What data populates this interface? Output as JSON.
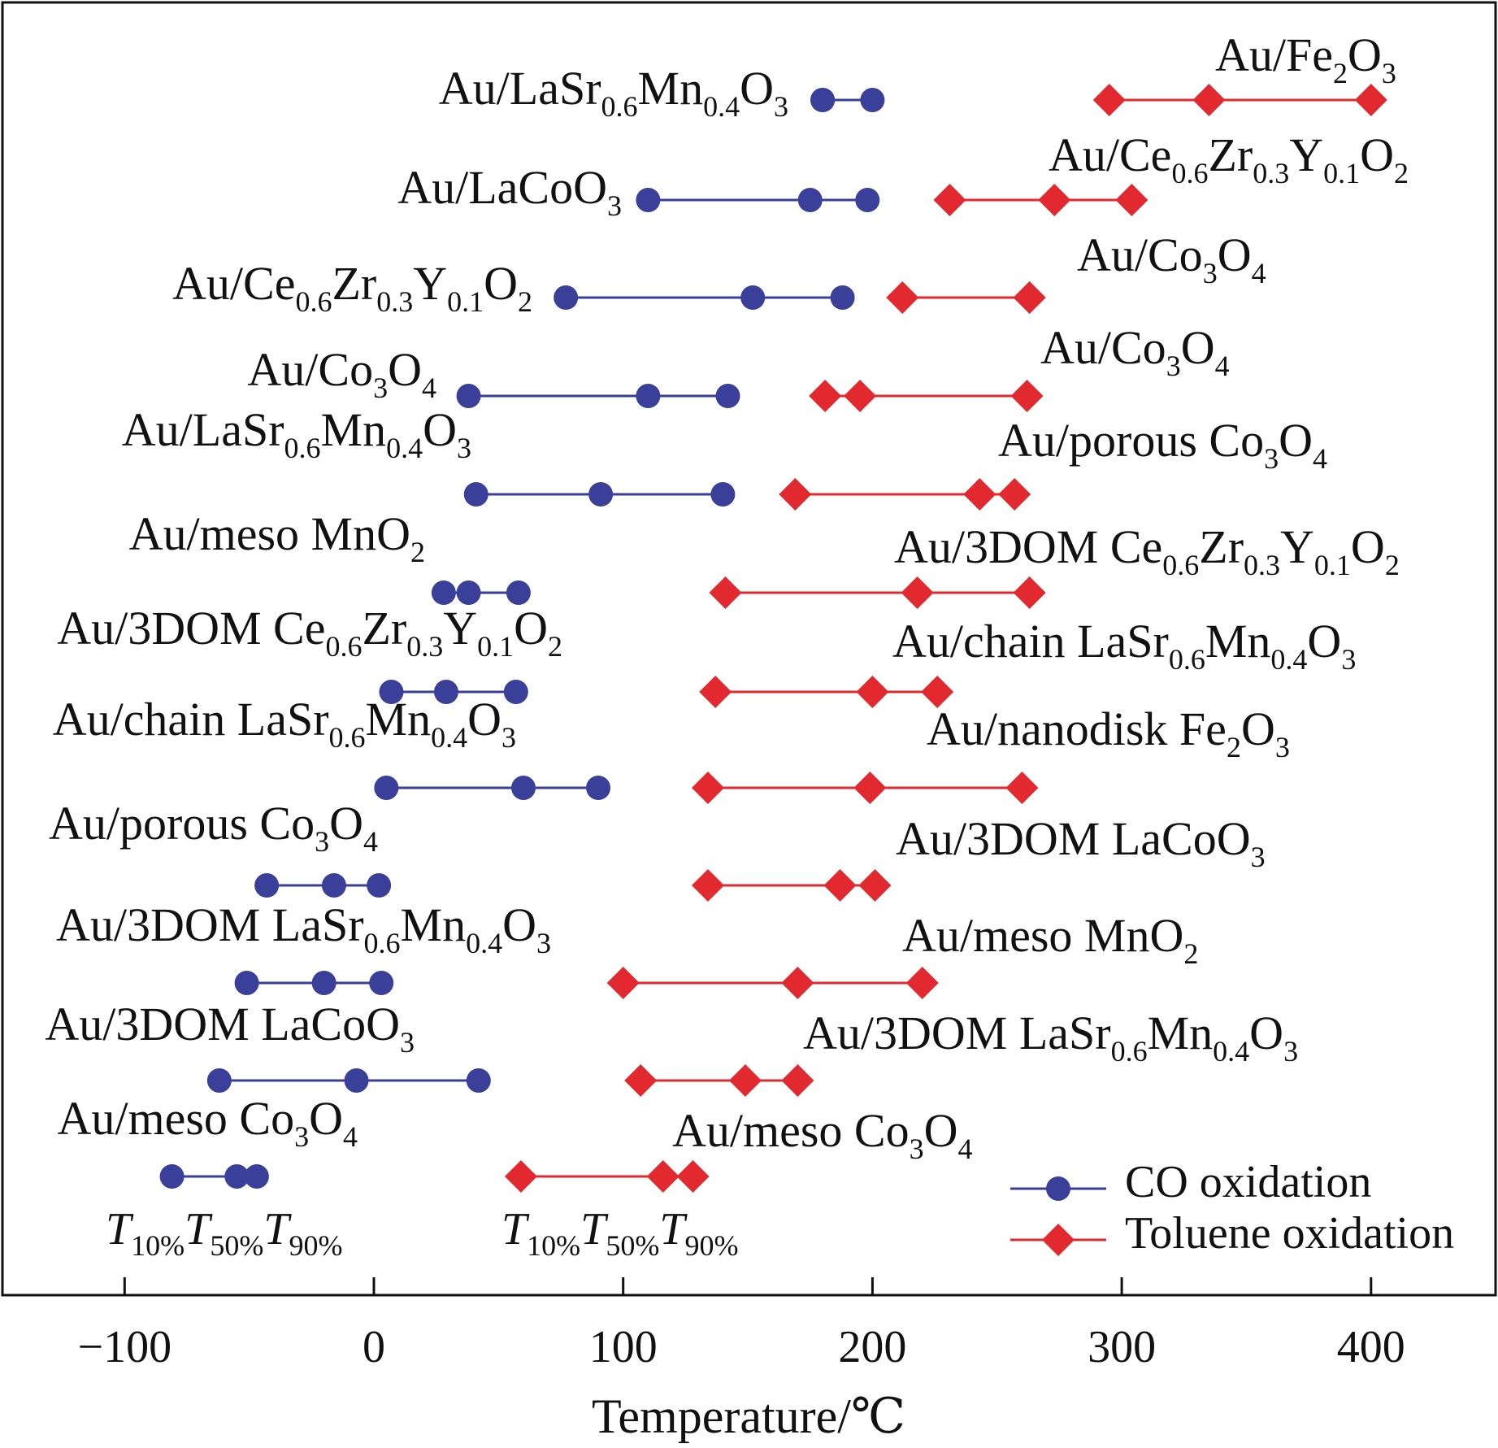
{
  "chart_data": {
    "type": "scatter",
    "xlabel": "Temperature/℃",
    "xlim": [
      -150,
      450
    ],
    "x_ticks": [
      -100,
      0,
      100,
      200,
      300,
      400
    ],
    "x_tick_labels": [
      "−100",
      "0",
      "100",
      "200",
      "300",
      "400"
    ],
    "grid": false,
    "legend_position": "bottom-right",
    "colors": {
      "co": "#3a3f9a",
      "toluene": "#e2292f"
    },
    "series": [
      {
        "name": "CO oxidation",
        "color": "#3a3f9a",
        "marker": "circle"
      },
      {
        "name": "Toluene oxidation",
        "color": "#e2292f",
        "marker": "diamond"
      }
    ],
    "bottom_labels": {
      "co": [
        {
          "base": "T",
          "sub": "10%"
        },
        {
          "base": "T",
          "sub": "50%"
        },
        {
          "base": "T",
          "sub": "90%"
        }
      ],
      "toluene": [
        {
          "base": "T",
          "sub": "10%"
        },
        {
          "base": "T",
          "sub": "50%"
        },
        {
          "base": "T",
          "sub": "90%"
        }
      ]
    },
    "co_rows": [
      {
        "catalyst": [
          [
            "Au/LaSr",
            ""
          ],
          [
            "0.6",
            "sub"
          ],
          [
            "Mn",
            ""
          ],
          [
            "0.4",
            "sub"
          ],
          [
            "O",
            ""
          ],
          [
            "3",
            "sub"
          ]
        ],
        "T10": 180,
        "T50": 180,
        "T90": 200
      },
      {
        "catalyst": [
          [
            "Au/LaCoO",
            ""
          ],
          [
            "3",
            "sub"
          ]
        ],
        "T10": 110,
        "T50": 175,
        "T90": 198
      },
      {
        "catalyst": [
          [
            "Au/Ce",
            ""
          ],
          [
            "0.6",
            "sub"
          ],
          [
            "Zr",
            ""
          ],
          [
            "0.3",
            "sub"
          ],
          [
            "Y",
            ""
          ],
          [
            "0.1",
            "sub"
          ],
          [
            "O",
            ""
          ],
          [
            "2",
            "sub"
          ]
        ],
        "T10": 77,
        "T50": 152,
        "T90": 188
      },
      {
        "catalyst": [
          [
            "Au/Co",
            ""
          ],
          [
            "3",
            "sub"
          ],
          [
            "O",
            ""
          ],
          [
            "4",
            "sub"
          ]
        ],
        "T10": 38,
        "T50": 110,
        "T90": 142
      },
      {
        "catalyst": [
          [
            "Au/LaSr",
            ""
          ],
          [
            "0.6",
            "sub"
          ],
          [
            "Mn",
            ""
          ],
          [
            "0.4",
            "sub"
          ],
          [
            "O",
            ""
          ],
          [
            "3",
            "sub"
          ]
        ],
        "T10": 41,
        "T50": 91,
        "T90": 140
      },
      {
        "catalyst": [
          [
            "Au/meso MnO",
            ""
          ],
          [
            "2",
            "sub"
          ]
        ],
        "T10": 28,
        "T50": 38,
        "T90": 58
      },
      {
        "catalyst": [
          [
            "Au/3DOM Ce",
            ""
          ],
          [
            "0.6",
            "sub"
          ],
          [
            "Zr",
            ""
          ],
          [
            "0.3",
            "sub"
          ],
          [
            "Y",
            ""
          ],
          [
            "0.1",
            "sub"
          ],
          [
            "O",
            ""
          ],
          [
            "2",
            "sub"
          ]
        ],
        "T10": 7,
        "T50": 29,
        "T90": 57
      },
      {
        "catalyst": [
          [
            "Au/chain LaSr",
            ""
          ],
          [
            "0.6",
            "sub"
          ],
          [
            "Mn",
            ""
          ],
          [
            "0.4",
            "sub"
          ],
          [
            "O",
            ""
          ],
          [
            "3",
            "sub"
          ]
        ],
        "T10": 5,
        "T50": 60,
        "T90": 90
      },
      {
        "catalyst": [
          [
            "Au/porous Co",
            ""
          ],
          [
            "3",
            "sub"
          ],
          [
            "O",
            ""
          ],
          [
            "4",
            "sub"
          ]
        ],
        "T10": -43,
        "T50": -16,
        "T90": 2
      },
      {
        "catalyst": [
          [
            "Au/3DOM LaSr",
            ""
          ],
          [
            "0.6",
            "sub"
          ],
          [
            "Mn",
            ""
          ],
          [
            "0.4",
            "sub"
          ],
          [
            "O",
            ""
          ],
          [
            "3",
            "sub"
          ]
        ],
        "T10": -51,
        "T50": -20,
        "T90": 3
      },
      {
        "catalyst": [
          [
            "Au/3DOM LaCoO",
            ""
          ],
          [
            "3",
            "sub"
          ]
        ],
        "T10": -62,
        "T50": -7,
        "T90": 42
      },
      {
        "catalyst": [
          [
            "Au/meso Co",
            ""
          ],
          [
            "3",
            "sub"
          ],
          [
            "O",
            ""
          ],
          [
            "4",
            "sub"
          ]
        ],
        "T10": -81,
        "T50": -55,
        "T90": -47
      }
    ],
    "toluene_rows": [
      {
        "catalyst": [
          [
            "Au/Fe",
            ""
          ],
          [
            "2",
            "sub"
          ],
          [
            "O",
            ""
          ],
          [
            "3",
            "sub"
          ]
        ],
        "T10": 295,
        "T50": 335,
        "T90": 400
      },
      {
        "catalyst": [
          [
            "Au/Ce",
            ""
          ],
          [
            "0.6",
            "sub"
          ],
          [
            "Zr",
            ""
          ],
          [
            "0.3",
            "sub"
          ],
          [
            "Y",
            ""
          ],
          [
            "0.1",
            "sub"
          ],
          [
            "O",
            ""
          ],
          [
            "2",
            "sub"
          ]
        ],
        "T10": 231,
        "T50": 273,
        "T90": 304
      },
      {
        "catalyst": [
          [
            "Au/Co",
            ""
          ],
          [
            "3",
            "sub"
          ],
          [
            "O",
            ""
          ],
          [
            "4",
            "sub"
          ]
        ],
        "T10": 212,
        "T50": 263,
        "T90": 263
      },
      {
        "catalyst": [
          [
            "Au/Co",
            ""
          ],
          [
            "3",
            "sub"
          ],
          [
            "O",
            ""
          ],
          [
            "4",
            "sub"
          ]
        ],
        "T10": 181,
        "T50": 195,
        "T90": 262
      },
      {
        "catalyst": [
          [
            "Au/porous Co",
            ""
          ],
          [
            "3",
            "sub"
          ],
          [
            "O",
            ""
          ],
          [
            "4",
            "sub"
          ]
        ],
        "T10": 169,
        "T50": 243,
        "T90": 257
      },
      {
        "catalyst": [
          [
            "Au/3DOM Ce",
            ""
          ],
          [
            "0.6",
            "sub"
          ],
          [
            "Zr",
            ""
          ],
          [
            "0.3",
            "sub"
          ],
          [
            "Y",
            ""
          ],
          [
            "0.1",
            "sub"
          ],
          [
            "O",
            ""
          ],
          [
            "2",
            "sub"
          ]
        ],
        "T10": 141,
        "T50": 218,
        "T90": 263
      },
      {
        "catalyst": [
          [
            "Au/chain LaSr",
            ""
          ],
          [
            "0.6",
            "sub"
          ],
          [
            "Mn",
            ""
          ],
          [
            "0.4",
            "sub"
          ],
          [
            "O",
            ""
          ],
          [
            "3",
            "sub"
          ]
        ],
        "T10": 137,
        "T50": 200,
        "T90": 226
      },
      {
        "catalyst": [
          [
            "Au/nanodisk Fe",
            ""
          ],
          [
            "2",
            "sub"
          ],
          [
            "O",
            ""
          ],
          [
            "3",
            "sub"
          ]
        ],
        "T10": 134,
        "T50": 199,
        "T90": 260
      },
      {
        "catalyst": [
          [
            "Au/3DOM LaCoO",
            ""
          ],
          [
            "3",
            "sub"
          ]
        ],
        "T10": 134,
        "T50": 187,
        "T90": 201
      },
      {
        "catalyst": [
          [
            "Au/meso MnO",
            ""
          ],
          [
            "2",
            "sub"
          ]
        ],
        "T10": 100,
        "T50": 170,
        "T90": 220
      },
      {
        "catalyst": [
          [
            "Au/3DOM LaSr",
            ""
          ],
          [
            "0.6",
            "sub"
          ],
          [
            "Mn",
            ""
          ],
          [
            "0.4",
            "sub"
          ],
          [
            "O",
            ""
          ],
          [
            "3",
            "sub"
          ]
        ],
        "T10": 107,
        "T50": 149,
        "T90": 170
      },
      {
        "catalyst": [
          [
            "Au/meso Co",
            ""
          ],
          [
            "3",
            "sub"
          ],
          [
            "O",
            ""
          ],
          [
            "4",
            "sub"
          ]
        ],
        "T10": 59,
        "T50": 116,
        "T90": 128
      }
    ]
  }
}
